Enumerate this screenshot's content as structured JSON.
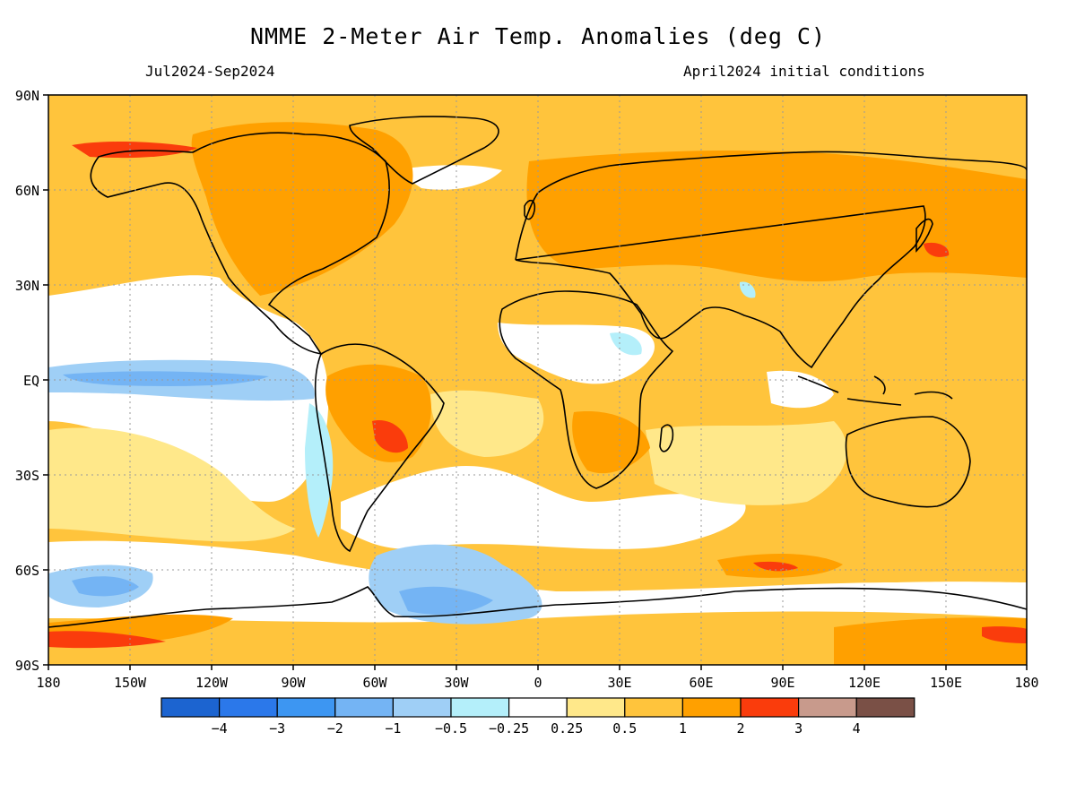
{
  "title": "NMME 2-Meter Air Temp. Anomalies (deg C)",
  "subtitle_left": "Jul2024-Sep2024",
  "subtitle_right": "April2024 initial conditions",
  "lat_labels": [
    "90N",
    "60N",
    "30N",
    "EQ",
    "30S",
    "60S",
    "90S"
  ],
  "lon_labels": [
    "180",
    "150W",
    "120W",
    "90W",
    "60W",
    "30W",
    "0",
    "30E",
    "60E",
    "90E",
    "120E",
    "150E",
    "180"
  ],
  "colorbar": {
    "colors": [
      "#1c64d0",
      "#2b78ea",
      "#3d96f2",
      "#74b4f4",
      "#9fcff6",
      "#b4effa",
      "#ffffff",
      "#ffe88a",
      "#ffc43c",
      "#ffa000",
      "#fa3c0c",
      "#c89a8c",
      "#7a5046"
    ],
    "tick_labels": [
      "−4",
      "−3",
      "−2",
      "−1",
      "−0.5",
      "−0.25",
      "0.25",
      "0.5",
      "1",
      "2",
      "3",
      "4"
    ]
  }
}
